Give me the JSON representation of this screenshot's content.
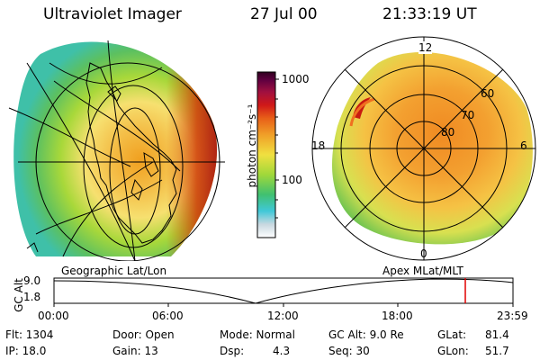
{
  "header": {
    "instrument": "Ultraviolet Imager",
    "date": "27 Jul 00",
    "time": "21:33:19 UT"
  },
  "colorbar": {
    "unit_label": "photon cm⁻²s⁻¹",
    "ticks": [
      "1000",
      "100"
    ]
  },
  "polar_panel": {
    "mlt_labels": {
      "top": "12",
      "left": "18",
      "right": "6",
      "bottom": "0"
    },
    "lat_labels": [
      "60",
      "70",
      "80"
    ]
  },
  "panel_titles": {
    "left": "Geographic Lat/Lon",
    "right": "Apex MLat/MLT"
  },
  "altitude_plot": {
    "ylabel": "GC Alt",
    "yticks": [
      "9.0",
      "1.8"
    ],
    "xticks": [
      "00:00",
      "06:00",
      "12:00",
      "18:00",
      "23:59"
    ]
  },
  "footer": {
    "flt": "Flt: 1304",
    "ip": "IP: 18.0",
    "door": "Door: Open",
    "gain": "Gain: 13",
    "mode": "Mode: Normal",
    "dsp_label": "Dsp:",
    "dsp_value": "4.3",
    "gc_alt": "GC Alt: 9.0 Re",
    "seq": "Seq: 30",
    "glat_label": "GLat:",
    "glat_value": "81.4",
    "glon_label": "GLon:",
    "glon_value": "51.7"
  },
  "colors": {
    "altitude_marker": "#e00000"
  }
}
